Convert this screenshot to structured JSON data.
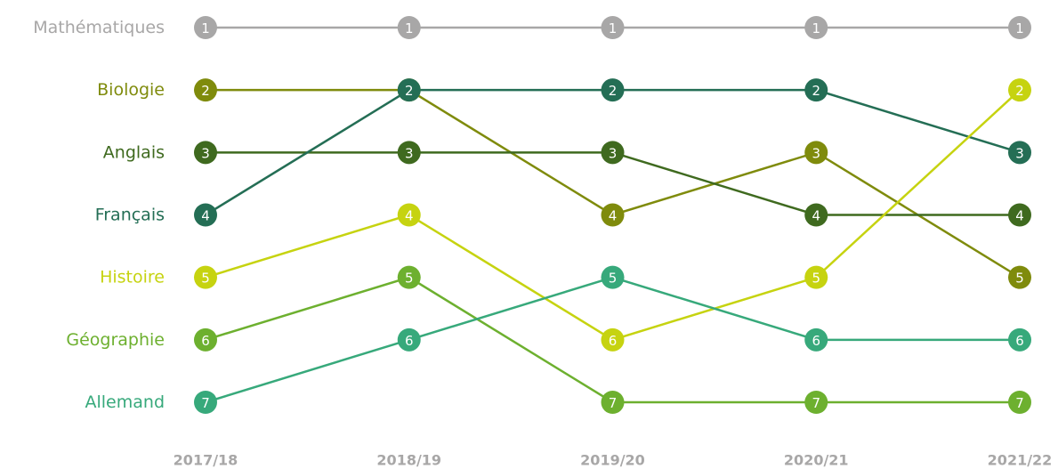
{
  "chart_data": {
    "type": "line",
    "categories": [
      "2017/18",
      "2018/19",
      "2019/20",
      "2020/21",
      "2021/22"
    ],
    "ylim": [
      7,
      1
    ],
    "series": [
      {
        "name": "Mathématiques",
        "color": "#a8a7a7",
        "values": [
          1,
          1,
          1,
          1,
          1
        ]
      },
      {
        "name": "Biologie",
        "color": "#7f8b0c",
        "values": [
          2,
          2,
          4,
          3,
          5
        ]
      },
      {
        "name": "Anglais",
        "color": "#3f6a1f",
        "values": [
          3,
          3,
          3,
          4,
          4
        ]
      },
      {
        "name": "Français",
        "color": "#246e55",
        "values": [
          4,
          2,
          2,
          2,
          3
        ]
      },
      {
        "name": "Histoire",
        "color": "#c6d310",
        "values": [
          5,
          4,
          6,
          5,
          2
        ]
      },
      {
        "name": "Géographie",
        "color": "#6db02f",
        "values": [
          6,
          5,
          7,
          7,
          7
        ]
      },
      {
        "name": "Allemand",
        "color": "#37a97b",
        "values": [
          7,
          6,
          5,
          6,
          6
        ]
      }
    ]
  }
}
